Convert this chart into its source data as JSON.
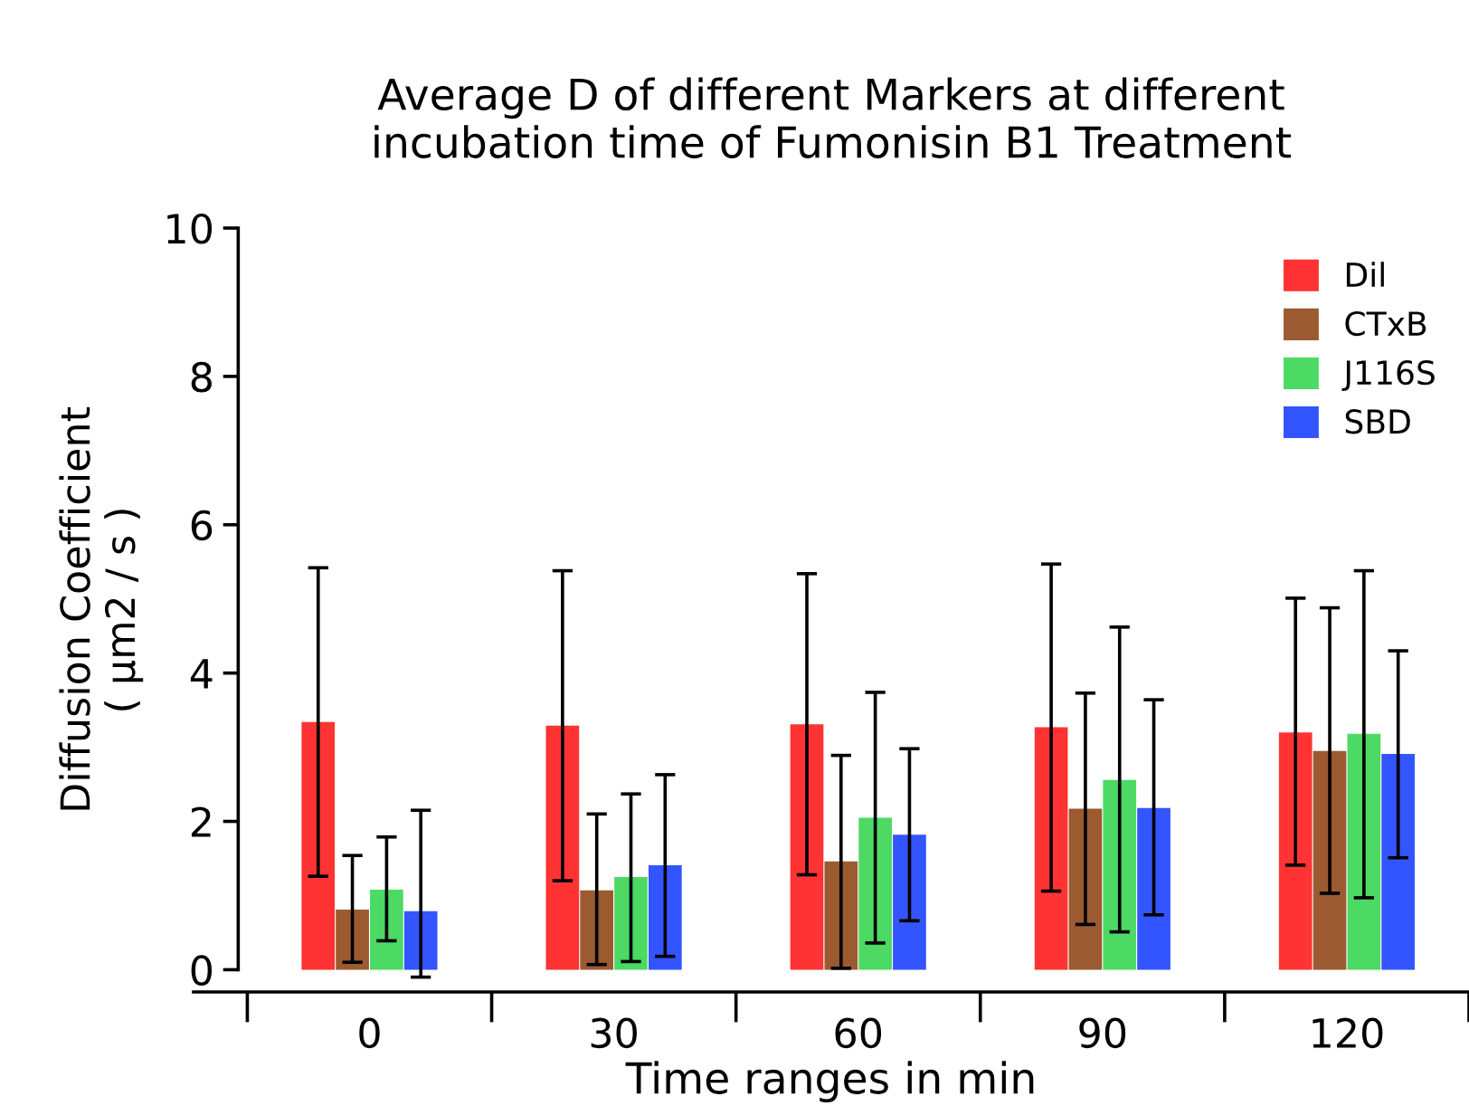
{
  "chart_data": {
    "type": "bar",
    "title": "Average D of different Markers at different\nincubation time of Fumonisin B1 Treatment",
    "xlabel": "Time ranges in min",
    "ylabel": "Diffusion Coefficient\n( μm2 / s )",
    "categories": [
      "0",
      "30",
      "60",
      "90",
      "120"
    ],
    "ylim": [
      -0.3,
      10
    ],
    "yticks": [
      0,
      2,
      4,
      6,
      8,
      10
    ],
    "legend": "top right",
    "grid": false,
    "series": [
      {
        "name": "Dil",
        "color": "#ff3333",
        "values": [
          3.34,
          3.29,
          3.31,
          3.27,
          3.2
        ],
        "errors": [
          [
            1.26,
            5.42
          ],
          [
            1.2,
            5.38
          ],
          [
            1.28,
            5.34
          ],
          [
            1.06,
            5.47
          ],
          [
            1.41,
            5.01
          ]
        ]
      },
      {
        "name": "CTxB",
        "color": "#9b5a30",
        "values": [
          0.81,
          1.07,
          1.46,
          2.17,
          2.95
        ],
        "errors": [
          [
            0.1,
            1.54
          ],
          [
            0.07,
            2.1
          ],
          [
            0.02,
            2.89
          ],
          [
            0.61,
            3.73
          ],
          [
            1.03,
            4.88
          ]
        ]
      },
      {
        "name": "J116S",
        "color": "#4cd964",
        "values": [
          1.08,
          1.25,
          2.05,
          2.56,
          3.18
        ],
        "errors": [
          [
            0.39,
            1.79
          ],
          [
            0.11,
            2.37
          ],
          [
            0.36,
            3.74
          ],
          [
            0.51,
            4.62
          ],
          [
            0.97,
            5.38
          ]
        ]
      },
      {
        "name": "SBD",
        "color": "#3355ff",
        "values": [
          0.79,
          1.41,
          1.82,
          2.18,
          2.91
        ],
        "errors": [
          [
            -0.1,
            2.15
          ],
          [
            0.18,
            2.63
          ],
          [
            0.66,
            2.98
          ],
          [
            0.74,
            3.64
          ],
          [
            1.51,
            4.3
          ]
        ]
      }
    ]
  }
}
